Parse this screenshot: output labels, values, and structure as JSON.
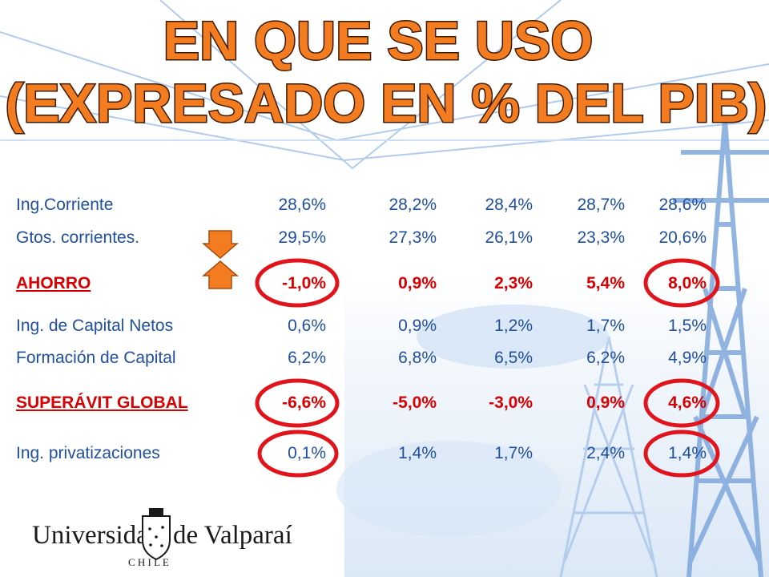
{
  "title": {
    "line1": "EN QUE SE USO",
    "line2": "(EXPRESADO EN % DEL PIB)"
  },
  "rows": [
    {
      "label": "Ing.Corriente",
      "values": [
        "28,6%",
        "28,2%",
        "28,4%",
        "28,7%",
        "28,6%"
      ],
      "highlight": false
    },
    {
      "label": "Gtos. corrientes.",
      "values": [
        "29,5%",
        "27,3%",
        "26,1%",
        "23,3%",
        "20,6%"
      ],
      "highlight": false
    },
    {
      "label": "AHORRO",
      "values": [
        "-1,0%",
        "0,9%",
        "2,3%",
        "5,4%",
        "8,0%"
      ],
      "highlight": true
    },
    {
      "label": "Ing. de Capital Netos",
      "values": [
        "0,6%",
        "0,9%",
        "1,2%",
        "1,7%",
        "1,5%"
      ],
      "highlight": false
    },
    {
      "label": "Formación de Capital",
      "values": [
        "6,2%",
        "6,8%",
        "6,5%",
        "6,2%",
        "4,9%"
      ],
      "highlight": false
    },
    {
      "label": "SUPERÁVIT GLOBAL",
      "values": [
        "-6,6%",
        "-5,0%",
        "-3,0%",
        "0,9%",
        "4,6%"
      ],
      "highlight": true
    },
    {
      "label": "Ing. privatizaciones",
      "values": [
        "0,1%",
        "1,4%",
        "1,7%",
        "2,4%",
        "1,4%"
      ],
      "highlight": false
    }
  ],
  "logo": {
    "name_left": "Universidad",
    "name_right": "de Valparaíso",
    "country": "C H I L E"
  },
  "colors": {
    "title_fill": "#f47c20",
    "text": "#1f4fa0",
    "highlight": "#d80000",
    "arrow": "#f47c20"
  },
  "icons": {
    "arrows": "down-up-arrows-icon",
    "seal": "university-seal-icon"
  }
}
